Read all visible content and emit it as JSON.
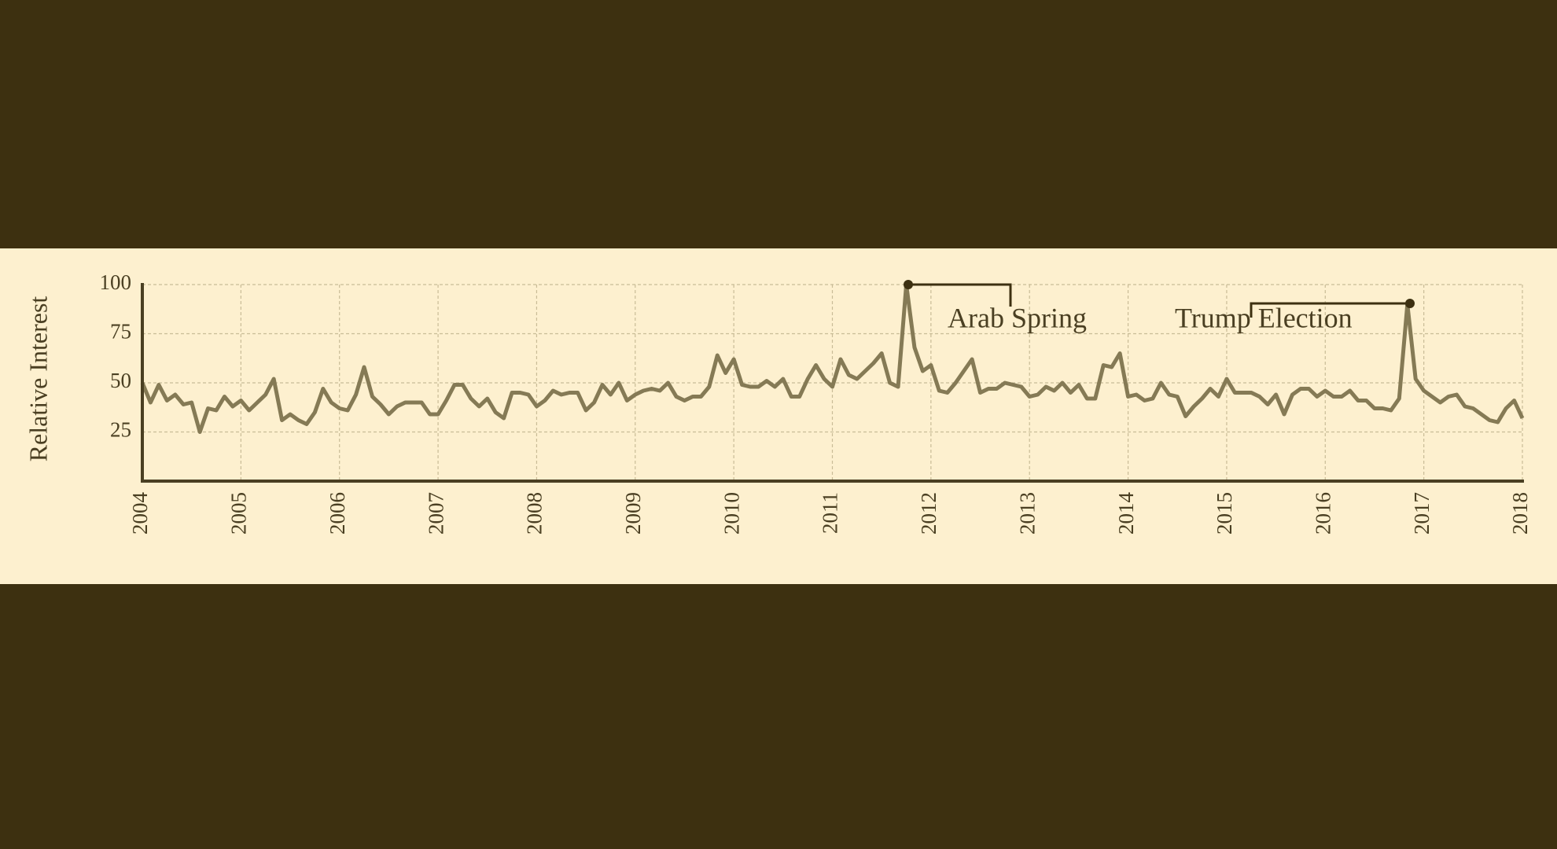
{
  "chart_data": {
    "type": "line",
    "y_label": "Relative Interest",
    "color": "#857a55",
    "xlim": [
      2004,
      2018
    ],
    "xticks": [
      2004,
      2005,
      2006,
      2007,
      2008,
      2009,
      2010,
      2011,
      2012,
      2013,
      2014,
      2015,
      2016,
      2017,
      2018
    ],
    "ylim": [
      0,
      100
    ],
    "yticks": [
      25,
      50,
      75,
      100
    ],
    "grid": true,
    "annotations": [
      {
        "text": "Arab Spring"
      },
      {
        "text": "Trump Election"
      }
    ],
    "values": [
      50,
      40,
      49,
      41,
      44,
      39,
      40,
      25,
      37,
      36,
      43,
      38,
      41,
      36,
      40,
      44,
      52,
      31,
      34,
      31,
      29,
      35,
      47,
      40,
      37,
      36,
      44,
      58,
      43,
      39,
      34,
      38,
      40,
      40,
      40,
      34,
      34,
      41,
      49,
      49,
      42,
      38,
      42,
      35,
      32,
      45,
      45,
      44,
      38,
      41,
      46,
      44,
      45,
      45,
      36,
      40,
      49,
      44,
      50,
      41,
      44,
      46,
      47,
      46,
      50,
      43,
      41,
      43,
      43,
      48,
      64,
      55,
      62,
      49,
      48,
      48,
      51,
      48,
      52,
      43,
      43,
      52,
      59,
      52,
      48,
      62,
      54,
      52,
      56,
      60,
      65,
      50,
      48,
      100,
      68,
      56,
      59,
      46,
      45,
      50,
      56,
      62,
      45,
      47,
      47,
      50,
      49,
      48,
      43,
      44,
      48,
      46,
      50,
      45,
      49,
      42,
      42,
      59,
      58,
      65,
      43,
      44,
      41,
      42,
      50,
      44,
      43,
      33,
      38,
      42,
      47,
      43,
      52,
      45,
      45,
      45,
      43,
      39,
      44,
      34,
      44,
      47,
      47,
      43,
      46,
      43,
      43,
      46,
      41,
      41,
      37,
      37,
      36,
      42,
      90,
      52,
      46,
      43,
      40,
      43,
      44,
      38,
      37,
      34,
      31,
      30,
      37,
      41,
      32
    ]
  }
}
